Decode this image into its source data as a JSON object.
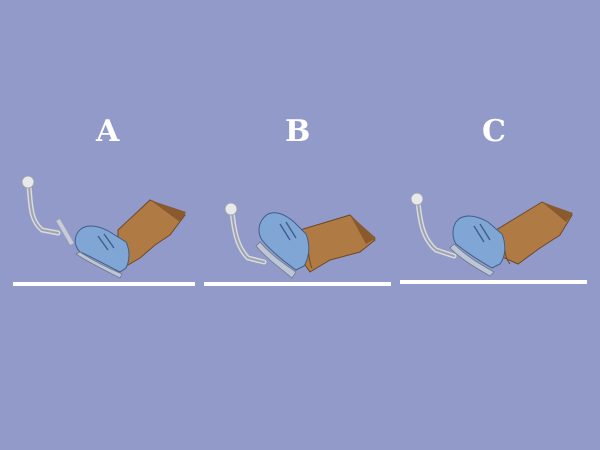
{
  "panels": [
    {
      "label": "A"
    },
    {
      "label": "B"
    },
    {
      "label": "C"
    }
  ],
  "colors": {
    "background": "#919ac9",
    "label": "#ffffff",
    "floor": "#ffffff",
    "shoe": "#7fa6d4",
    "leg": "#b07a45",
    "pedal": "#b9bcc4"
  },
  "icons": [
    "pedal-icon",
    "shoe-icon",
    "leg-icon",
    "floor-line"
  ]
}
